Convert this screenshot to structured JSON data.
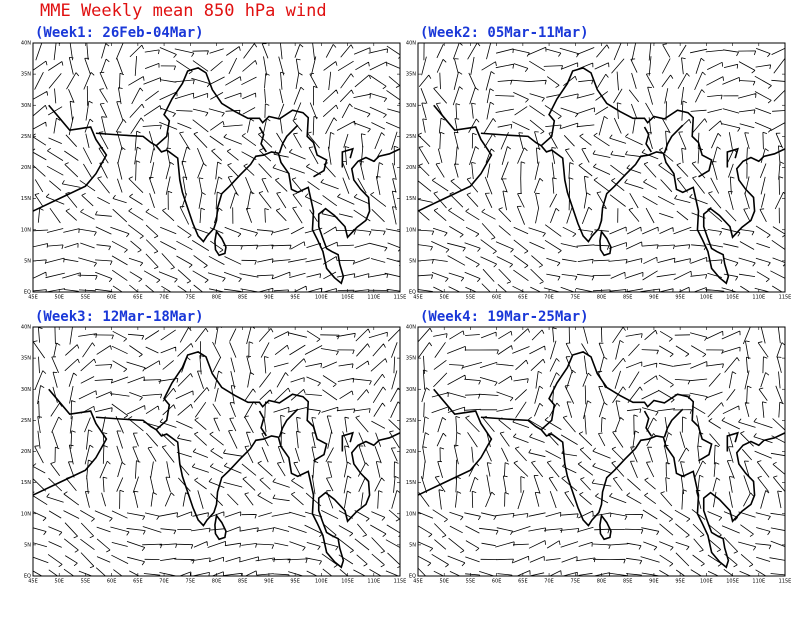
{
  "title": "MME Weekly mean 850 hPa wind",
  "panels": [
    {
      "title": "(Week1: 26Feb-04Mar)"
    },
    {
      "title": "(Week2: 05Mar-11Mar)"
    },
    {
      "title": "(Week3: 12Mar-18Mar)"
    },
    {
      "title": "(Week4: 19Mar-25Mar)"
    }
  ],
  "lon_labels": [
    "45E",
    "50E",
    "55E",
    "60E",
    "65E",
    "70E",
    "75E",
    "80E",
    "85E",
    "90E",
    "95E",
    "100E",
    "105E",
    "110E",
    "115E"
  ],
  "lat_labels": [
    "EQ",
    "5N",
    "10N",
    "15N",
    "20N",
    "25N",
    "30N",
    "35N",
    "40N"
  ]
}
